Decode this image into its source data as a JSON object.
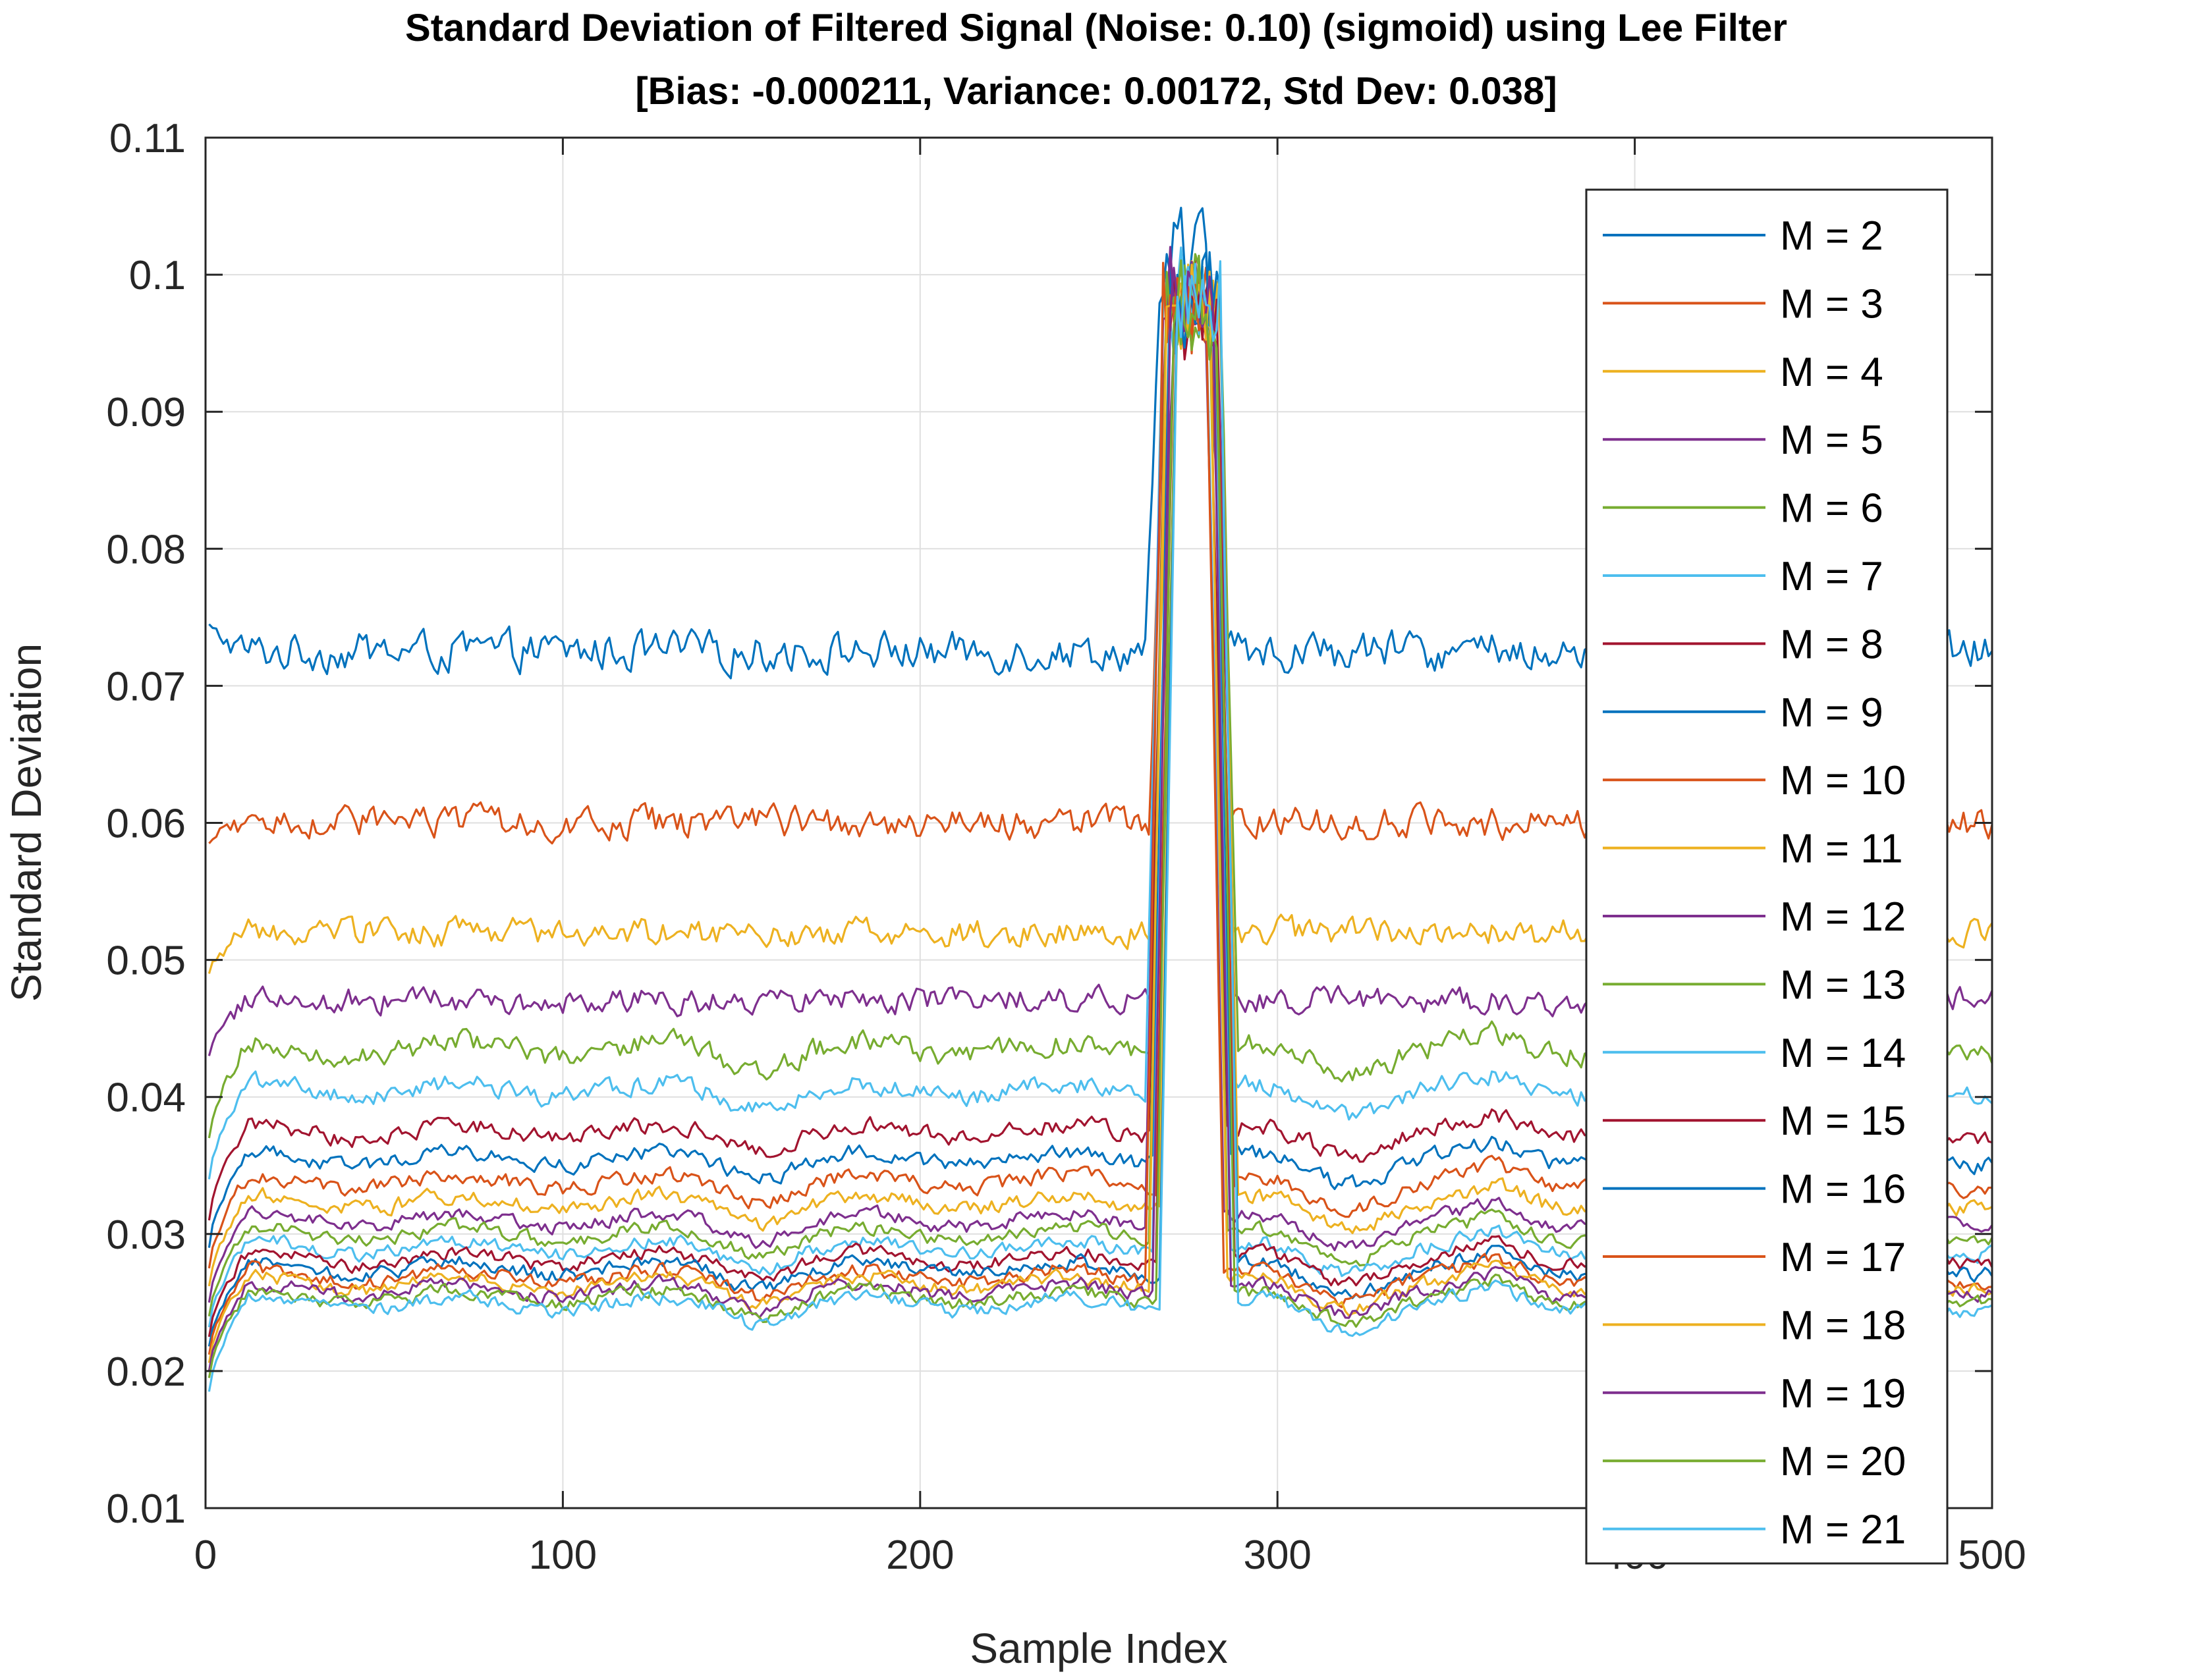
{
  "chart_data": {
    "type": "line",
    "title": "Standard Deviation of Filtered Signal (Noise: 0.10) (sigmoid) using Lee Filter",
    "subtitle": "[Bias: -0.000211, Variance: 0.00172, Std Dev: 0.038]",
    "xlabel": "Sample Index",
    "ylabel": "Standard Deviation",
    "xlim": [
      0,
      500
    ],
    "ylim": [
      0.01,
      0.11
    ],
    "xticks": [
      "0",
      "100",
      "200",
      "300",
      "400",
      "500"
    ],
    "yticks": [
      "0.01",
      "0.02",
      "0.03",
      "0.04",
      "0.05",
      "0.06",
      "0.07",
      "0.08",
      "0.09",
      "0.1",
      "0.11"
    ],
    "grid": true,
    "legend_position": "top-right",
    "x_range": [
      1,
      500
    ],
    "peak_region": {
      "rise_start": 265,
      "plateau": [
        270,
        282
      ],
      "fall_end": 287,
      "peak_level": 0.098
    },
    "series": [
      {
        "name": "M = 2",
        "color": "#0072BD",
        "baseline": 0.0725,
        "noise": 0.0022,
        "start": 0.0745
      },
      {
        "name": "M = 3",
        "color": "#D95319",
        "baseline": 0.06,
        "noise": 0.0018,
        "start": 0.0585
      },
      {
        "name": "M = 4",
        "color": "#EDB120",
        "baseline": 0.052,
        "noise": 0.0016,
        "start": 0.049
      },
      {
        "name": "M = 5",
        "color": "#7E2F8E",
        "baseline": 0.047,
        "noise": 0.0015,
        "start": 0.043
      },
      {
        "name": "M = 6",
        "color": "#77AC30",
        "baseline": 0.0435,
        "noise": 0.0013,
        "start": 0.037
      },
      {
        "name": "M = 7",
        "color": "#4DBEEE",
        "baseline": 0.0405,
        "noise": 0.0011,
        "start": 0.034
      },
      {
        "name": "M = 8",
        "color": "#A2142F",
        "baseline": 0.0375,
        "noise": 0.001,
        "start": 0.031
      },
      {
        "name": "M = 9",
        "color": "#0072BD",
        "baseline": 0.0355,
        "noise": 0.0009,
        "start": 0.029
      },
      {
        "name": "M = 10",
        "color": "#D95319",
        "baseline": 0.0338,
        "noise": 0.0009,
        "start": 0.0275
      },
      {
        "name": "M = 11",
        "color": "#EDB120",
        "baseline": 0.0323,
        "noise": 0.0009,
        "start": 0.0262
      },
      {
        "name": "M = 12",
        "color": "#7E2F8E",
        "baseline": 0.031,
        "noise": 0.0008,
        "start": 0.025
      },
      {
        "name": "M = 13",
        "color": "#77AC30",
        "baseline": 0.03,
        "noise": 0.0008,
        "start": 0.024
      },
      {
        "name": "M = 14",
        "color": "#4DBEEE",
        "baseline": 0.029,
        "noise": 0.0008,
        "start": 0.0232
      },
      {
        "name": "M = 15",
        "color": "#A2142F",
        "baseline": 0.0282,
        "noise": 0.0008,
        "start": 0.0225
      },
      {
        "name": "M = 16",
        "color": "#0072BD",
        "baseline": 0.0275,
        "noise": 0.0008,
        "start": 0.0218
      },
      {
        "name": "M = 17",
        "color": "#D95319",
        "baseline": 0.0269,
        "noise": 0.0008,
        "start": 0.0212
      },
      {
        "name": "M = 18",
        "color": "#EDB120",
        "baseline": 0.0264,
        "noise": 0.0008,
        "start": 0.0206
      },
      {
        "name": "M = 19",
        "color": "#7E2F8E",
        "baseline": 0.0259,
        "noise": 0.0008,
        "start": 0.02
      },
      {
        "name": "M = 20",
        "color": "#77AC30",
        "baseline": 0.0254,
        "noise": 0.0008,
        "start": 0.0195
      },
      {
        "name": "M = 21",
        "color": "#4DBEEE",
        "baseline": 0.0249,
        "noise": 0.0008,
        "start": 0.0185
      }
    ]
  }
}
